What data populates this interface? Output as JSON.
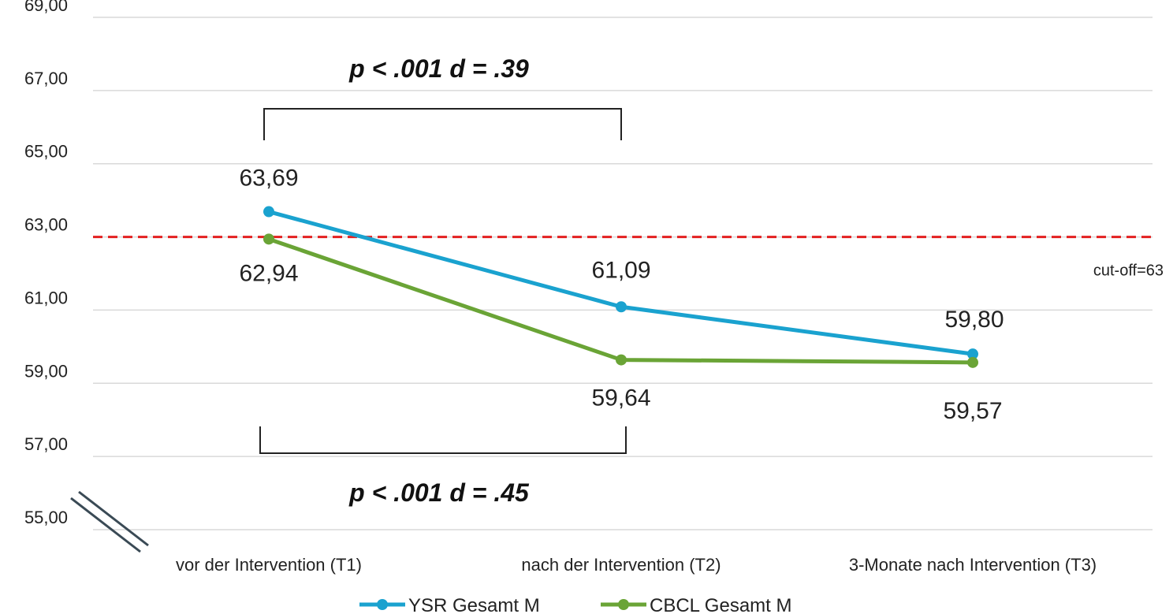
{
  "chart_data": {
    "type": "line",
    "categories": [
      "vor der Intervention (T1)",
      "nach der Intervention (T2)",
      "3-Monate nach Intervention (T3)"
    ],
    "series": [
      {
        "name": "YSR Gesamt M",
        "values": [
          63.69,
          61.09,
          59.8
        ],
        "labels": [
          "63,69",
          "61,09",
          "59,80"
        ],
        "color": "#1aa2cf"
      },
      {
        "name": "CBCL Gesamt M",
        "values": [
          62.94,
          59.64,
          59.57
        ],
        "labels": [
          "62,94",
          "59,64",
          "59,57"
        ],
        "color": "#6aa436"
      }
    ],
    "ylim": [
      55,
      69
    ],
    "yticks": [
      "55,00",
      "57,00",
      "59,00",
      "61,00",
      "63,00",
      "65,00",
      "67,00",
      "69,00"
    ],
    "grid": true,
    "legend": "bottom",
    "cutoff": {
      "value": 63,
      "label": "cut-off=63",
      "color": "#e32020"
    },
    "annotations": {
      "top": "p < .001 d = .39",
      "bottom": "p < .001 d = .45"
    }
  }
}
